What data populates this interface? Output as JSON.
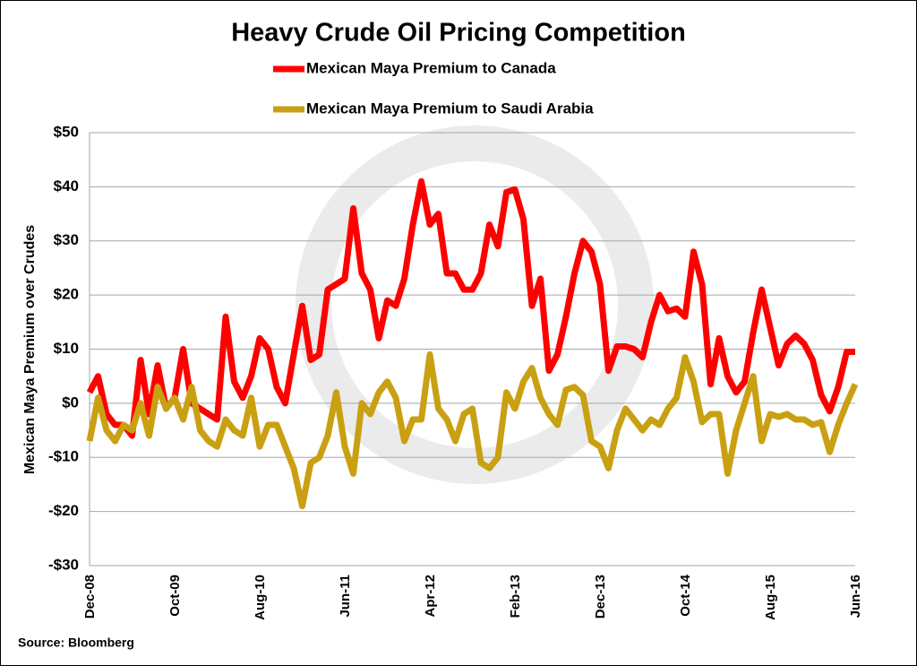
{
  "chart_data": {
    "type": "line",
    "title": "Heavy Crude Oil Pricing Competition",
    "ylabel": "Mexican Maya Premium over Crudes",
    "source": "Source: Bloomberg",
    "categories": [
      "Dec-08",
      null,
      null,
      null,
      null,
      null,
      null,
      null,
      null,
      null,
      "Oct-09",
      null,
      null,
      null,
      null,
      null,
      null,
      null,
      null,
      null,
      "Aug-10",
      null,
      null,
      null,
      null,
      null,
      null,
      null,
      null,
      null,
      "Jun-11",
      null,
      null,
      null,
      null,
      null,
      null,
      null,
      null,
      null,
      "Apr-12",
      null,
      null,
      null,
      null,
      null,
      null,
      null,
      null,
      null,
      "Feb-13",
      null,
      null,
      null,
      null,
      null,
      null,
      null,
      null,
      null,
      "Dec-13",
      null,
      null,
      null,
      null,
      null,
      null,
      null,
      null,
      null,
      "Oct-14",
      null,
      null,
      null,
      null,
      null,
      null,
      null,
      null,
      null,
      "Aug-15",
      null,
      null,
      null,
      null,
      null,
      null,
      null,
      null,
      null,
      "Jun-16"
    ],
    "series": [
      {
        "name": "Mexican Maya Premium to Canada",
        "color": "#ff0000",
        "values": [
          2,
          5,
          -2,
          -4,
          -4,
          -6,
          8,
          -2,
          7,
          -1,
          1,
          10,
          0,
          -1,
          -2,
          -3,
          16,
          4,
          1,
          5,
          12,
          10,
          3,
          0,
          9,
          18,
          8,
          9,
          21,
          22,
          23,
          36,
          24,
          21,
          12,
          19,
          18,
          23,
          33,
          41,
          33,
          35,
          24,
          24,
          21,
          21,
          24,
          33,
          29,
          39,
          39.5,
          34,
          18,
          23,
          6,
          9,
          16,
          24,
          30,
          28,
          22,
          6,
          10.5,
          10.5,
          10,
          8.5,
          15,
          20,
          17,
          17.5,
          16,
          28,
          22,
          3.5,
          12,
          5,
          2,
          4,
          13,
          21,
          14,
          7,
          11,
          12.5,
          11,
          8,
          1.5,
          -1.5,
          3,
          9.5,
          9.5
        ]
      },
      {
        "name": "Mexican Maya Premium to Saudi Arabia",
        "color": "#c9a012",
        "values": [
          -7,
          1,
          -5,
          -7,
          -4,
          -5,
          0,
          -6,
          3,
          -1,
          1,
          -3,
          3,
          -5,
          -7,
          -8,
          -3,
          -5,
          -6,
          1,
          -8,
          -4,
          -4,
          -8,
          -12,
          -19,
          -11,
          -10,
          -6,
          2,
          -8,
          -13,
          0,
          -2,
          2,
          4,
          1,
          -7,
          -3,
          -3,
          9,
          -1,
          -3,
          -7,
          -2,
          -1,
          -11,
          -12,
          -10,
          2,
          -1,
          4,
          6.5,
          1,
          -2,
          -4,
          2.5,
          3,
          1.5,
          -7,
          -8,
          -12,
          -5,
          -1,
          -3,
          -5,
          -3,
          -4,
          -1,
          1,
          8.5,
          4,
          -3.5,
          -2,
          -2,
          -13,
          -5,
          0,
          5,
          -7,
          -2,
          -2.5,
          -2,
          -3,
          -3,
          -4,
          -3.5,
          -9,
          -4,
          0,
          3.5
        ]
      }
    ],
    "ylim": [
      -30,
      50
    ],
    "yticks": [
      {
        "value": -30,
        "label": "-$30"
      },
      {
        "value": -20,
        "label": "-$20"
      },
      {
        "value": -10,
        "label": "-$10"
      },
      {
        "value": 0,
        "label": "$0"
      },
      {
        "value": 10,
        "label": "$10"
      },
      {
        "value": 20,
        "label": "$20"
      },
      {
        "value": 30,
        "label": "$30"
      },
      {
        "value": 40,
        "label": "$40"
      },
      {
        "value": 50,
        "label": "$50"
      }
    ],
    "grid": true
  }
}
